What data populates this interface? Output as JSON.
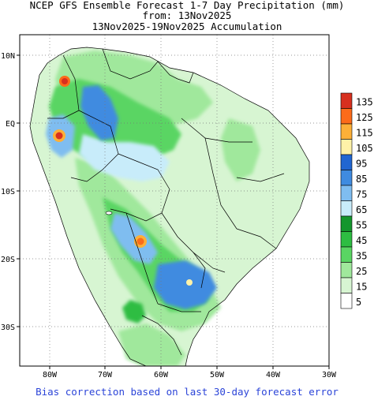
{
  "title": {
    "line1": "NCEP GFS Ensemble Forecast 1-7 Day Precipitation (mm)",
    "line2": "from: 13Nov2025",
    "line3": "13Nov2025-19Nov2025 Accumulation"
  },
  "footer": "Bias correction based on last 30-day forecast error",
  "axes": {
    "x_ticks": [
      "80W",
      "70W",
      "60W",
      "50W",
      "40W",
      "30W"
    ],
    "y_ticks": [
      "10N",
      "EQ",
      "10S",
      "20S",
      "30S"
    ],
    "grid": "dotted",
    "lon_range": [
      -85,
      -30
    ],
    "lat_range": [
      13,
      -36
    ]
  },
  "legend": {
    "labels": [
      "135",
      "125",
      "115",
      "105",
      "95",
      "85",
      "75",
      "65",
      "55",
      "45",
      "35",
      "25",
      "15",
      "5"
    ],
    "colors": [
      "#d7301f",
      "#fc6b1a",
      "#fdb038",
      "#fff2a8",
      "#2166d1",
      "#3f8be0",
      "#7fbdf0",
      "#c8ecfa",
      "#14962d",
      "#2ebd42",
      "#5ad563",
      "#a0e89c",
      "#d7f5d2",
      "#ffffff"
    ]
  },
  "colors": {
    "land_outline": "#000000",
    "footer_text": "#2b44d8"
  }
}
